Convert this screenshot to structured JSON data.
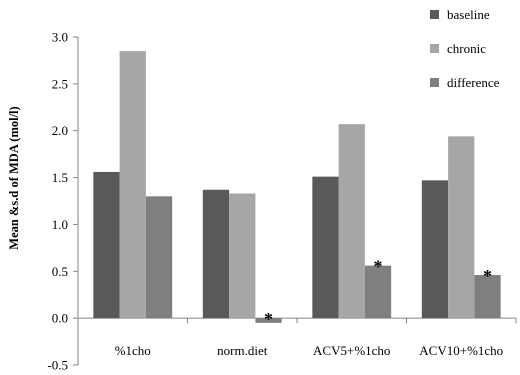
{
  "chart_data": {
    "type": "bar",
    "title": "",
    "xlabel": "",
    "ylabel": "Mean &s.d of MDA (mol/l)",
    "ylim": [
      -0.5,
      3.0
    ],
    "yticks": [
      "3.0",
      "2.5",
      "2.0",
      "1.5",
      "1.0",
      "0.5",
      "0.0",
      "-0.5"
    ],
    "ytick_values": [
      3.0,
      2.5,
      2.0,
      1.5,
      1.0,
      0.5,
      0.0,
      -0.5
    ],
    "grid": false,
    "legend_position": "top-right",
    "categories": [
      "%1cho",
      "norm.diet",
      "ACV5+%1cho",
      "ACV10+%1cho"
    ],
    "series": [
      {
        "name": "baseline",
        "color": "#595959",
        "values": [
          1.56,
          1.37,
          1.51,
          1.47
        ]
      },
      {
        "name": "chronic",
        "color": "#a6a6a6",
        "values": [
          2.85,
          1.33,
          2.07,
          1.94
        ]
      },
      {
        "name": "difference",
        "color": "#7f7f7f",
        "values": [
          1.3,
          -0.05,
          0.56,
          0.46
        ]
      }
    ],
    "annotations": [
      {
        "text": "*",
        "category": "norm.diet",
        "series": "difference"
      },
      {
        "text": "*",
        "category": "ACV5+%1cho",
        "series": "difference"
      },
      {
        "text": "*",
        "category": "ACV10+%1cho",
        "series": "difference"
      }
    ]
  }
}
